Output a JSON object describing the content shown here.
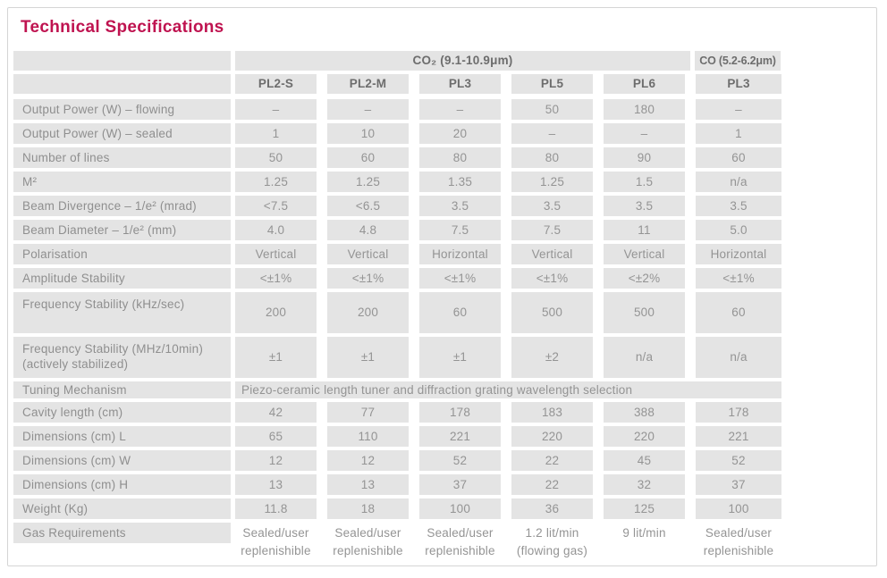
{
  "page": {
    "title": "Technical Specifications"
  },
  "colors": {
    "accent": "#bf1350",
    "cell_bg": "#e4e4e4",
    "label_text": "#8f8f8f",
    "value_text": "#949494",
    "header_text": "#6d6d6d",
    "card_border": "#d5d5d5"
  },
  "table": {
    "groups": [
      {
        "label": "CO₂ (9.1-10.9μm)",
        "span": 5
      },
      {
        "label": "CO (5.2-6.2μm)",
        "span": 1
      }
    ],
    "models": [
      "PL2-S",
      "PL2-M",
      "PL3",
      "PL5",
      "PL6",
      "PL3"
    ],
    "rows": [
      {
        "kind": "std",
        "label": "Output Power (W) – flowing",
        "values": [
          "–",
          "–",
          "–",
          "50",
          "180",
          "–"
        ]
      },
      {
        "kind": "std",
        "label": "Output Power (W) – sealed",
        "values": [
          "1",
          "10",
          "20",
          "–",
          "–",
          "1"
        ]
      },
      {
        "kind": "std",
        "label": "Number of lines",
        "values": [
          "50",
          "60",
          "80",
          "80",
          "90",
          "60"
        ]
      },
      {
        "kind": "std",
        "label": "M²",
        "values": [
          "1.25",
          "1.25",
          "1.35",
          "1.25",
          "1.5",
          "n/a"
        ]
      },
      {
        "kind": "std",
        "label": "Beam Divergence – 1/e² (mrad)",
        "values": [
          "<7.5",
          "<6.5",
          "3.5",
          "3.5",
          "3.5",
          "3.5"
        ]
      },
      {
        "kind": "std",
        "label": "Beam Diameter – 1/e² (mm)",
        "values": [
          "4.0",
          "4.8",
          "7.5",
          "7.5",
          "11",
          "5.0"
        ]
      },
      {
        "kind": "std",
        "label": "Polarisation",
        "values": [
          "Vertical",
          "Vertical",
          "Horizontal",
          "Vertical",
          "Vertical",
          "Horizontal"
        ]
      },
      {
        "kind": "std",
        "label": "Amplitude Stability",
        "values": [
          "<±1%",
          "<±1%",
          "<±1%",
          "<±1%",
          "<±2%",
          "<±1%"
        ]
      },
      {
        "kind": "tall",
        "label": "Frequency Stability (kHz/sec)",
        "values": [
          "200",
          "200",
          "60",
          "500",
          "500",
          "60"
        ]
      },
      {
        "kind": "tall",
        "label": "Frequency Stability (MHz/10min) (actively stabilized)",
        "values": [
          "±1",
          "±1",
          "±1",
          "±2",
          "n/a",
          "n/a"
        ]
      },
      {
        "kind": "merged",
        "label": "Tuning Mechanism",
        "merged": "Piezo-ceramic length tuner and diffraction grating wavelength selection"
      },
      {
        "kind": "std",
        "label": "Cavity length (cm)",
        "values": [
          "42",
          "77",
          "178",
          "183",
          "388",
          "178"
        ]
      },
      {
        "kind": "std",
        "label": "Dimensions (cm) L",
        "values": [
          "65",
          "110",
          "221",
          "220",
          "220",
          "221"
        ]
      },
      {
        "kind": "std",
        "label": "Dimensions (cm) W",
        "values": [
          "12",
          "12",
          "52",
          "22",
          "45",
          "52"
        ]
      },
      {
        "kind": "std",
        "label": "Dimensions (cm) H",
        "values": [
          "13",
          "13",
          "37",
          "22",
          "32",
          "37"
        ]
      },
      {
        "kind": "std",
        "label": "Weight (Kg)",
        "values": [
          "11.8",
          "18",
          "100",
          "36",
          "125",
          "100"
        ]
      },
      {
        "kind": "plain",
        "label": "Gas Requirements",
        "values": [
          "Sealed/user replenishible",
          "Sealed/user replenishible",
          "Sealed/user replenishible",
          "1.2 lit/min (flowing gas)",
          "9 lit/min",
          "Sealed/user replenishible"
        ]
      }
    ]
  }
}
